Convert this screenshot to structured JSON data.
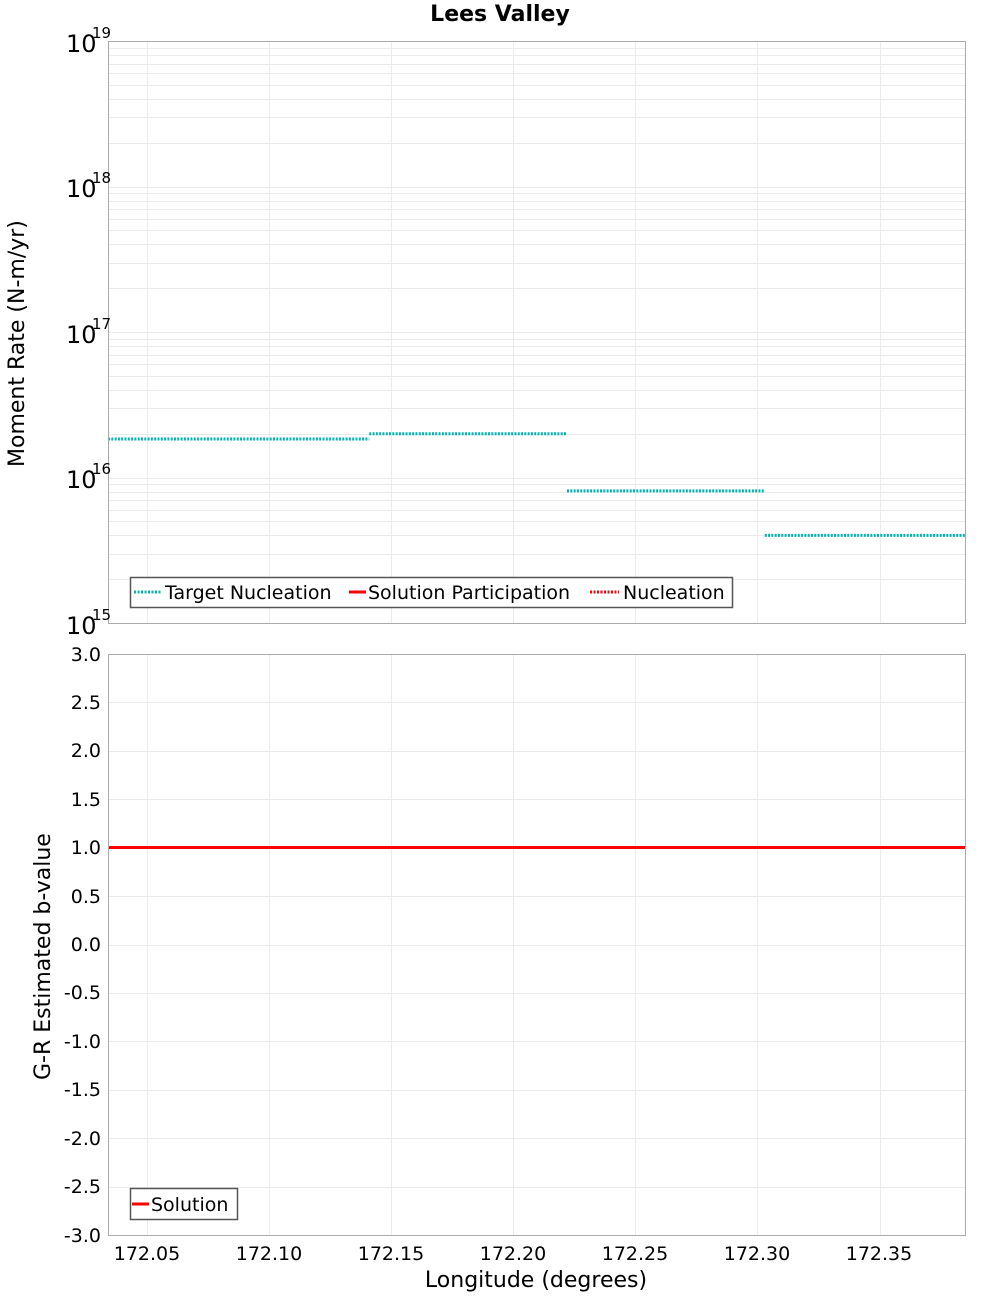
{
  "title": "Lees Valley",
  "chart_data": [
    {
      "type": "line",
      "title": "Lees Valley",
      "xlabel": "Longitude (degrees)",
      "ylabel": "Moment Rate (N-m/yr)",
      "yscale": "log",
      "ylim": [
        1000000000000000.0,
        1e+19
      ],
      "xlim": [
        172.034,
        172.385
      ],
      "ytick_labels": [
        "10^15",
        "10^16",
        "10^17",
        "10^18",
        "10^19"
      ],
      "xtick_labels": [
        "172.05",
        "172.10",
        "172.15",
        "172.20",
        "172.25",
        "172.30",
        "172.35"
      ],
      "grid": true,
      "legend_position": "lower-left",
      "legend": [
        "Target Nucleation",
        "Solution Participation",
        "Nucleation"
      ],
      "series": [
        {
          "name": "Target Nucleation",
          "color": "#00b4b4",
          "style": "dotted",
          "segments": [
            {
              "x": [
                172.034,
                172.141
              ],
              "y": 1.84e+16
            },
            {
              "x": [
                172.141,
                172.222
              ],
              "y": 2e+16
            },
            {
              "x": [
                172.222,
                172.303
              ],
              "y": 8100000000000000.0
            },
            {
              "x": [
                172.303,
                172.385
              ],
              "y": 4000000000000000.0
            }
          ]
        },
        {
          "name": "Solution Participation",
          "color": "#ff0000",
          "style": "solid",
          "segments": []
        },
        {
          "name": "Nucleation",
          "color": "#ff0000",
          "style": "dotted",
          "segments": []
        }
      ]
    },
    {
      "type": "line",
      "xlabel": "Longitude (degrees)",
      "ylabel": "G-R Estimated b-value",
      "ylim": [
        -3.0,
        3.0
      ],
      "xlim": [
        172.034,
        172.385
      ],
      "ytick_labels": [
        "3.0",
        "2.5",
        "2.0",
        "1.5",
        "1.0",
        "0.5",
        "0.0",
        "-0.5",
        "-1.0",
        "-1.5",
        "-2.0",
        "-2.5",
        "-3.0"
      ],
      "xtick_labels": [
        "172.05",
        "172.10",
        "172.15",
        "172.20",
        "172.25",
        "172.30",
        "172.35"
      ],
      "grid": true,
      "legend_position": "lower-left",
      "legend": [
        "Solution"
      ],
      "series": [
        {
          "name": "Solution",
          "color": "#ff0000",
          "style": "solid",
          "x": [
            172.034,
            172.385
          ],
          "y": [
            1.0,
            1.0
          ]
        }
      ]
    }
  ],
  "top": {
    "ylabel": "Moment Rate (N-m/yr)",
    "ticks": [
      {
        "base": "10",
        "exp": "19"
      },
      {
        "base": "10",
        "exp": "18"
      },
      {
        "base": "10",
        "exp": "17"
      },
      {
        "base": "10",
        "exp": "16"
      },
      {
        "base": "10",
        "exp": "15"
      }
    ],
    "legend": {
      "target_nucleation": "Target Nucleation",
      "solution_participation": "Solution Participation",
      "nucleation": "Nucleation"
    },
    "colors": {
      "target": "#00b4b4",
      "solution": "#ff0000",
      "nucleation": "#ff0000"
    }
  },
  "bottom": {
    "ylabel": "G-R Estimated b-value",
    "ticks": [
      "3.0",
      "2.5",
      "2.0",
      "1.5",
      "1.0",
      "0.5",
      "0.0",
      "-0.5",
      "-1.0",
      "-1.5",
      "-2.0",
      "-2.5",
      "-3.0"
    ],
    "legend": {
      "solution": "Solution"
    }
  },
  "xaxis": {
    "label": "Longitude (degrees)",
    "ticks": [
      "172.05",
      "172.10",
      "172.15",
      "172.20",
      "172.25",
      "172.30",
      "172.35"
    ]
  }
}
